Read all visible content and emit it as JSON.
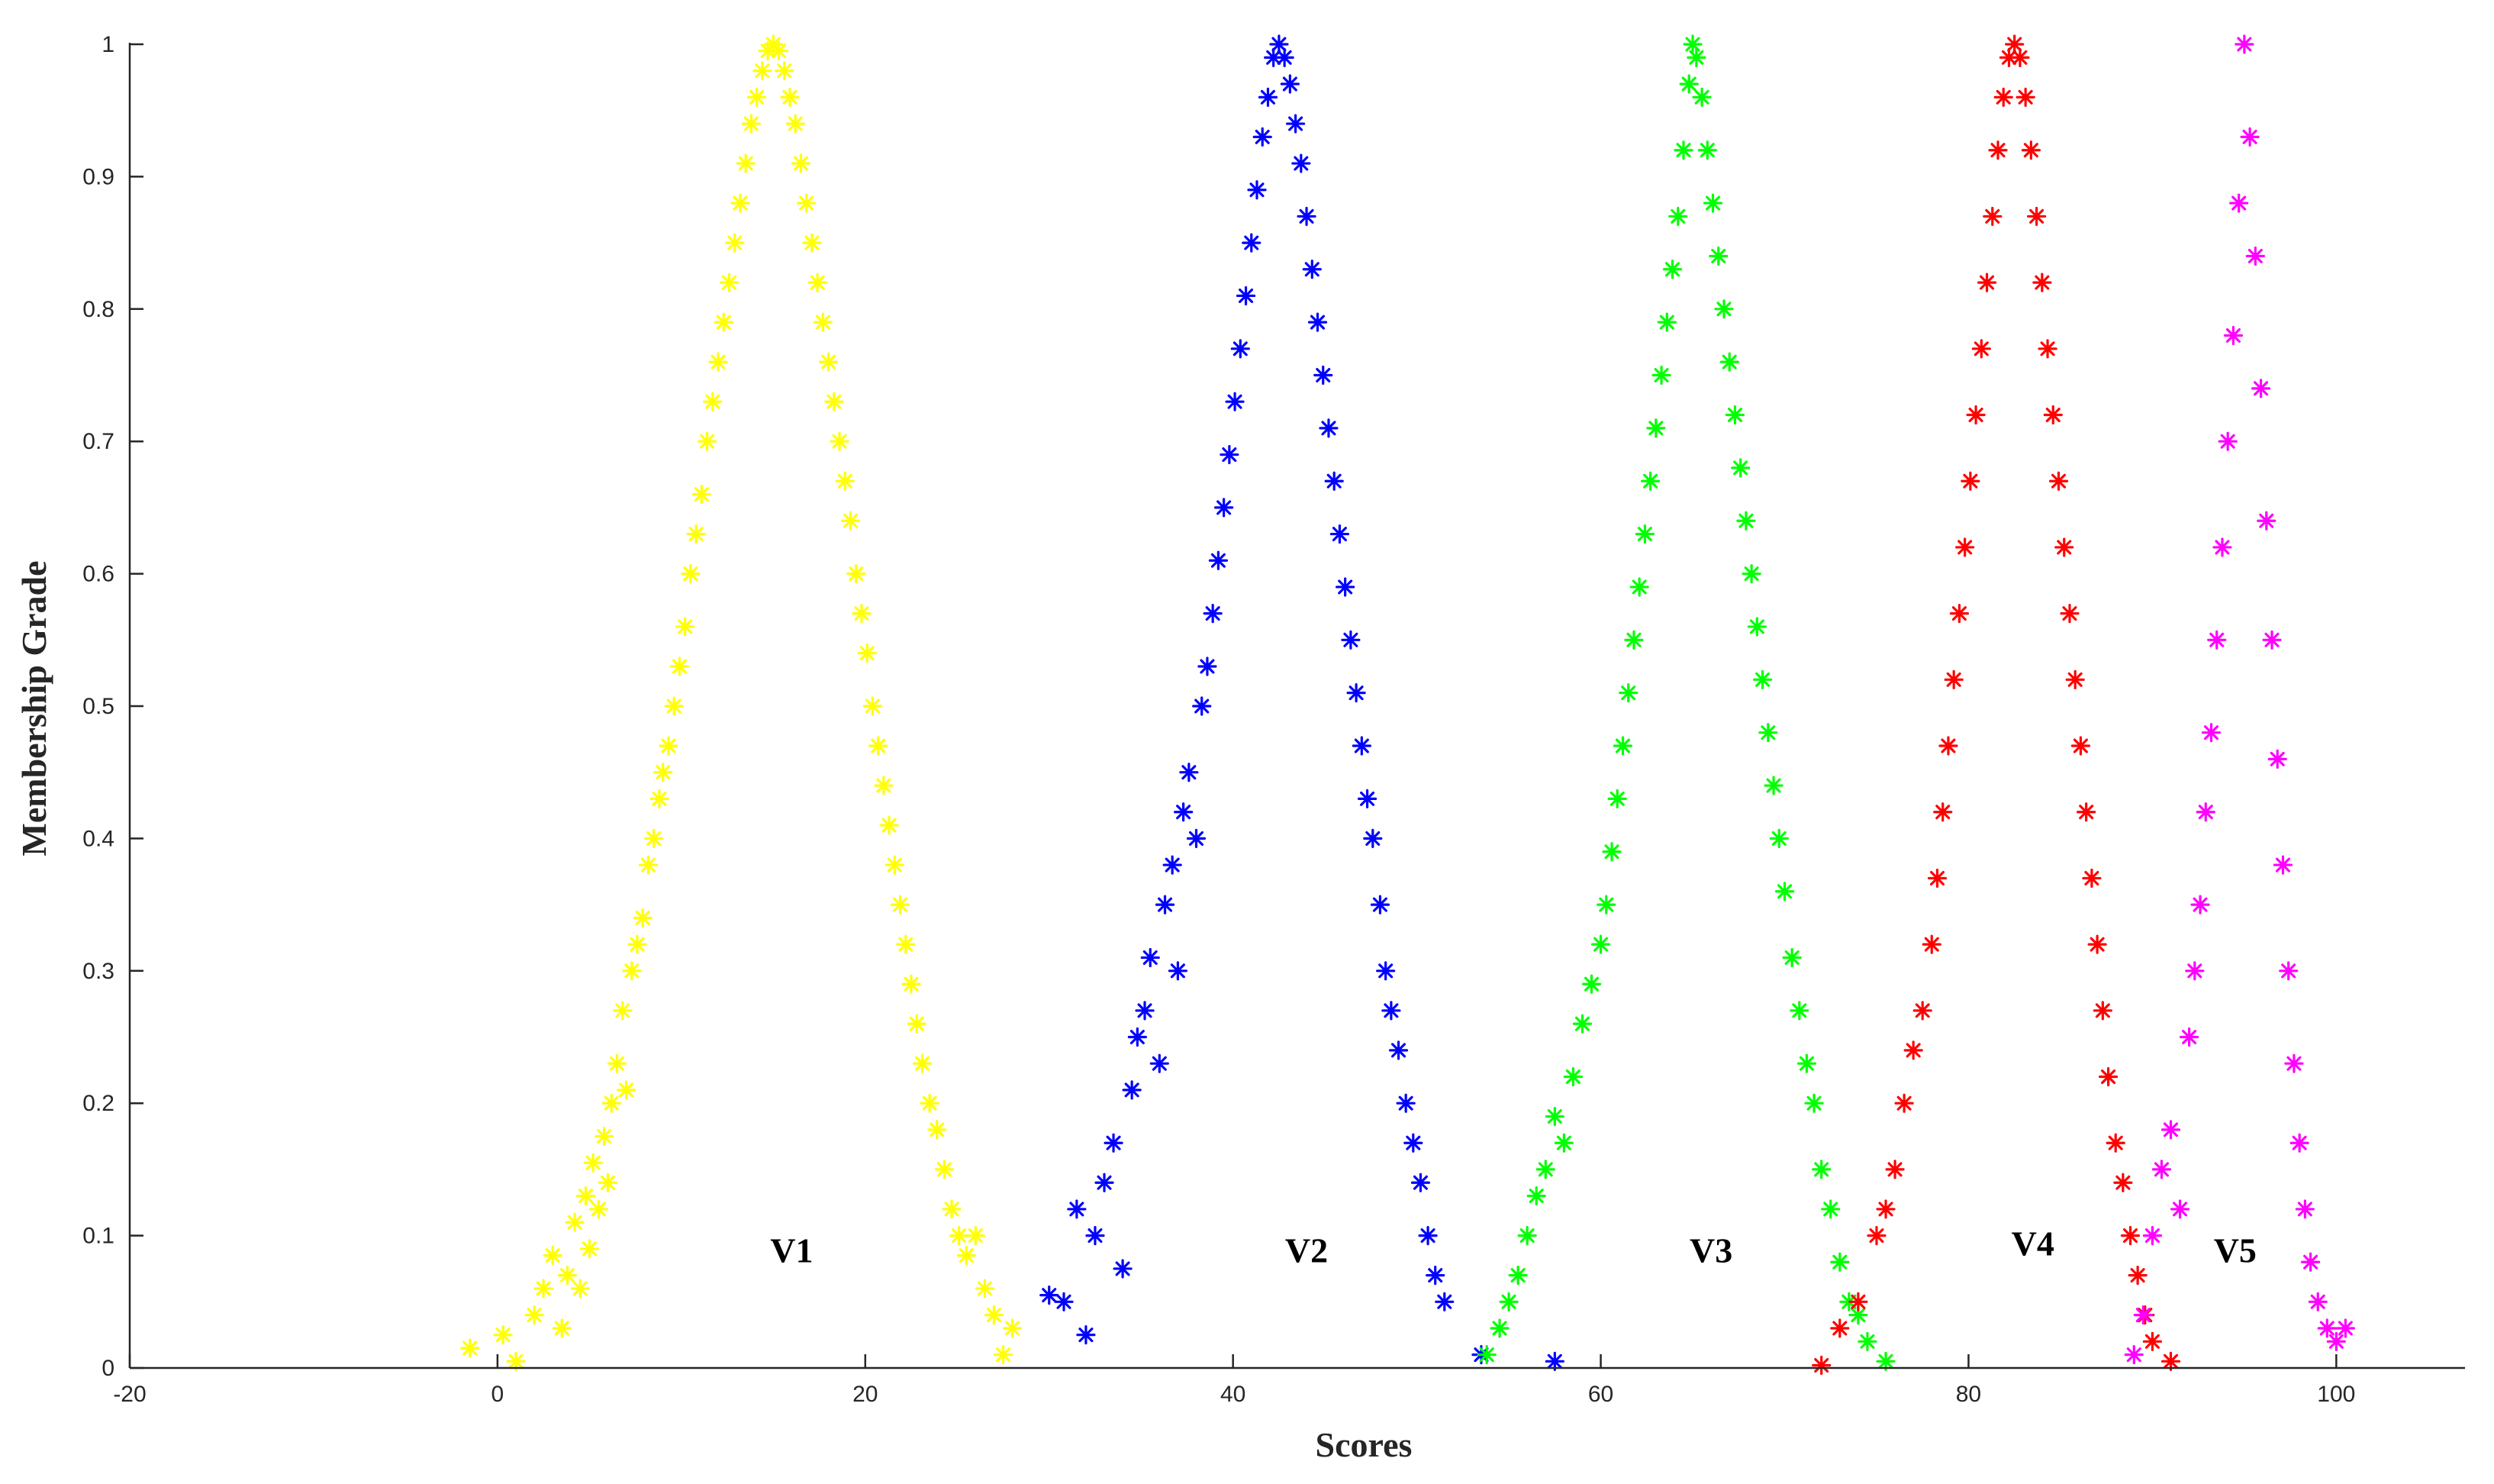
{
  "chart_data": {
    "type": "scatter",
    "title": "",
    "xlabel": "Scores",
    "ylabel": "Membership Grade",
    "xlim": [
      -20,
      107
    ],
    "ylim": [
      0,
      1
    ],
    "xticks": [
      -20,
      0,
      20,
      40,
      60,
      80,
      100
    ],
    "yticks": [
      0,
      0.1,
      0.2,
      0.3,
      0.4,
      0.5,
      0.6,
      0.7,
      0.8,
      0.9,
      1
    ],
    "marker": "asterisk",
    "grid": false,
    "legend": "none",
    "series": [
      {
        "color": "#ffff00",
        "peak": 15,
        "points": [
          [
            -1.5,
            0.015
          ],
          [
            0.3,
            0.025
          ],
          [
            1.0,
            0.005
          ],
          [
            2.0,
            0.04
          ],
          [
            2.5,
            0.06
          ],
          [
            3.0,
            0.085
          ],
          [
            3.5,
            0.03
          ],
          [
            3.8,
            0.07
          ],
          [
            4.2,
            0.11
          ],
          [
            4.5,
            0.06
          ],
          [
            4.8,
            0.13
          ],
          [
            5.0,
            0.09
          ],
          [
            5.2,
            0.155
          ],
          [
            5.5,
            0.12
          ],
          [
            5.8,
            0.175
          ],
          [
            6.0,
            0.14
          ],
          [
            6.2,
            0.2
          ],
          [
            6.5,
            0.23
          ],
          [
            6.8,
            0.27
          ],
          [
            7.0,
            0.21
          ],
          [
            7.3,
            0.3
          ],
          [
            7.6,
            0.32
          ],
          [
            7.9,
            0.34
          ],
          [
            8.2,
            0.38
          ],
          [
            8.5,
            0.4
          ],
          [
            8.8,
            0.43
          ],
          [
            9.0,
            0.45
          ],
          [
            9.3,
            0.47
          ],
          [
            9.6,
            0.5
          ],
          [
            9.9,
            0.53
          ],
          [
            10.2,
            0.56
          ],
          [
            10.5,
            0.6
          ],
          [
            10.8,
            0.63
          ],
          [
            11.1,
            0.66
          ],
          [
            11.4,
            0.7
          ],
          [
            11.7,
            0.73
          ],
          [
            12.0,
            0.76
          ],
          [
            12.3,
            0.79
          ],
          [
            12.6,
            0.82
          ],
          [
            12.9,
            0.85
          ],
          [
            13.2,
            0.88
          ],
          [
            13.5,
            0.91
          ],
          [
            13.8,
            0.94
          ],
          [
            14.1,
            0.96
          ],
          [
            14.4,
            0.98
          ],
          [
            14.7,
            0.995
          ],
          [
            15.0,
            1.0
          ],
          [
            15.3,
            0.995
          ],
          [
            15.6,
            0.98
          ],
          [
            15.9,
            0.96
          ],
          [
            16.2,
            0.94
          ],
          [
            16.5,
            0.91
          ],
          [
            16.8,
            0.88
          ],
          [
            17.1,
            0.85
          ],
          [
            17.4,
            0.82
          ],
          [
            17.7,
            0.79
          ],
          [
            18.0,
            0.76
          ],
          [
            18.3,
            0.73
          ],
          [
            18.6,
            0.7
          ],
          [
            18.9,
            0.67
          ],
          [
            19.2,
            0.64
          ],
          [
            19.5,
            0.6
          ],
          [
            19.8,
            0.57
          ],
          [
            20.1,
            0.54
          ],
          [
            20.4,
            0.5
          ],
          [
            20.7,
            0.47
          ],
          [
            21.0,
            0.44
          ],
          [
            21.3,
            0.41
          ],
          [
            21.6,
            0.38
          ],
          [
            21.9,
            0.35
          ],
          [
            22.2,
            0.32
          ],
          [
            22.5,
            0.29
          ],
          [
            22.8,
            0.26
          ],
          [
            23.1,
            0.23
          ],
          [
            23.5,
            0.2
          ],
          [
            23.9,
            0.18
          ],
          [
            24.3,
            0.15
          ],
          [
            24.7,
            0.12
          ],
          [
            25.1,
            0.1
          ],
          [
            25.5,
            0.085
          ],
          [
            26.0,
            0.1
          ],
          [
            26.5,
            0.06
          ],
          [
            27.0,
            0.04
          ],
          [
            27.5,
            0.01
          ],
          [
            28.0,
            0.03
          ]
        ]
      },
      {
        "color": "#0000ff",
        "peak": 42.5,
        "points": [
          [
            30.0,
            0.055
          ],
          [
            30.8,
            0.05
          ],
          [
            31.5,
            0.12
          ],
          [
            32.0,
            0.025
          ],
          [
            32.5,
            0.1
          ],
          [
            33.0,
            0.14
          ],
          [
            33.5,
            0.17
          ],
          [
            34.0,
            0.075
          ],
          [
            34.5,
            0.21
          ],
          [
            34.8,
            0.25
          ],
          [
            35.2,
            0.27
          ],
          [
            35.5,
            0.31
          ],
          [
            36.0,
            0.23
          ],
          [
            36.3,
            0.35
          ],
          [
            36.7,
            0.38
          ],
          [
            37.0,
            0.3
          ],
          [
            37.3,
            0.42
          ],
          [
            37.6,
            0.45
          ],
          [
            38.0,
            0.4
          ],
          [
            38.3,
            0.5
          ],
          [
            38.6,
            0.53
          ],
          [
            38.9,
            0.57
          ],
          [
            39.2,
            0.61
          ],
          [
            39.5,
            0.65
          ],
          [
            39.8,
            0.69
          ],
          [
            40.1,
            0.73
          ],
          [
            40.4,
            0.77
          ],
          [
            40.7,
            0.81
          ],
          [
            41.0,
            0.85
          ],
          [
            41.3,
            0.89
          ],
          [
            41.6,
            0.93
          ],
          [
            41.9,
            0.96
          ],
          [
            42.2,
            0.99
          ],
          [
            42.5,
            1.0
          ],
          [
            42.8,
            0.99
          ],
          [
            43.1,
            0.97
          ],
          [
            43.4,
            0.94
          ],
          [
            43.7,
            0.91
          ],
          [
            44.0,
            0.87
          ],
          [
            44.3,
            0.83
          ],
          [
            44.6,
            0.79
          ],
          [
            44.9,
            0.75
          ],
          [
            45.2,
            0.71
          ],
          [
            45.5,
            0.67
          ],
          [
            45.8,
            0.63
          ],
          [
            46.1,
            0.59
          ],
          [
            46.4,
            0.55
          ],
          [
            46.7,
            0.51
          ],
          [
            47.0,
            0.47
          ],
          [
            47.3,
            0.43
          ],
          [
            47.6,
            0.4
          ],
          [
            48.0,
            0.35
          ],
          [
            48.3,
            0.3
          ],
          [
            48.6,
            0.27
          ],
          [
            49.0,
            0.24
          ],
          [
            49.4,
            0.2
          ],
          [
            49.8,
            0.17
          ],
          [
            50.2,
            0.14
          ],
          [
            50.6,
            0.1
          ],
          [
            51.0,
            0.07
          ],
          [
            51.5,
            0.05
          ],
          [
            53.5,
            0.01
          ],
          [
            57.5,
            0.005
          ]
        ]
      },
      {
        "color": "#00ff00",
        "peak": 65,
        "points": [
          [
            53.8,
            0.01
          ],
          [
            54.5,
            0.03
          ],
          [
            55.0,
            0.05
          ],
          [
            55.5,
            0.07
          ],
          [
            56.0,
            0.1
          ],
          [
            56.5,
            0.13
          ],
          [
            57.0,
            0.15
          ],
          [
            57.5,
            0.19
          ],
          [
            58.0,
            0.17
          ],
          [
            58.5,
            0.22
          ],
          [
            59.0,
            0.26
          ],
          [
            59.5,
            0.29
          ],
          [
            60.0,
            0.32
          ],
          [
            60.3,
            0.35
          ],
          [
            60.6,
            0.39
          ],
          [
            60.9,
            0.43
          ],
          [
            61.2,
            0.47
          ],
          [
            61.5,
            0.51
          ],
          [
            61.8,
            0.55
          ],
          [
            62.1,
            0.59
          ],
          [
            62.4,
            0.63
          ],
          [
            62.7,
            0.67
          ],
          [
            63.0,
            0.71
          ],
          [
            63.3,
            0.75
          ],
          [
            63.6,
            0.79
          ],
          [
            63.9,
            0.83
          ],
          [
            64.2,
            0.87
          ],
          [
            64.5,
            0.92
          ],
          [
            64.8,
            0.97
          ],
          [
            65.0,
            1.0
          ],
          [
            65.2,
            0.99
          ],
          [
            65.5,
            0.96
          ],
          [
            65.8,
            0.92
          ],
          [
            66.1,
            0.88
          ],
          [
            66.4,
            0.84
          ],
          [
            66.7,
            0.8
          ],
          [
            67.0,
            0.76
          ],
          [
            67.3,
            0.72
          ],
          [
            67.6,
            0.68
          ],
          [
            67.9,
            0.64
          ],
          [
            68.2,
            0.6
          ],
          [
            68.5,
            0.56
          ],
          [
            68.8,
            0.52
          ],
          [
            69.1,
            0.48
          ],
          [
            69.4,
            0.44
          ],
          [
            69.7,
            0.4
          ],
          [
            70.0,
            0.36
          ],
          [
            70.4,
            0.31
          ],
          [
            70.8,
            0.27
          ],
          [
            71.2,
            0.23
          ],
          [
            71.6,
            0.2
          ],
          [
            72.0,
            0.15
          ],
          [
            72.5,
            0.12
          ],
          [
            73.0,
            0.08
          ],
          [
            73.5,
            0.05
          ],
          [
            74.0,
            0.04
          ],
          [
            74.5,
            0.02
          ],
          [
            75.5,
            0.005
          ]
        ]
      },
      {
        "color": "#ff0000",
        "peak": 82.5,
        "points": [
          [
            72.0,
            0.002
          ],
          [
            73.0,
            0.03
          ],
          [
            74.0,
            0.05
          ],
          [
            75.0,
            0.1
          ],
          [
            75.5,
            0.12
          ],
          [
            76.0,
            0.15
          ],
          [
            76.5,
            0.2
          ],
          [
            77.0,
            0.24
          ],
          [
            77.5,
            0.27
          ],
          [
            78.0,
            0.32
          ],
          [
            78.3,
            0.37
          ],
          [
            78.6,
            0.42
          ],
          [
            78.9,
            0.47
          ],
          [
            79.2,
            0.52
          ],
          [
            79.5,
            0.57
          ],
          [
            79.8,
            0.62
          ],
          [
            80.1,
            0.67
          ],
          [
            80.4,
            0.72
          ],
          [
            80.7,
            0.77
          ],
          [
            81.0,
            0.82
          ],
          [
            81.3,
            0.87
          ],
          [
            81.6,
            0.92
          ],
          [
            81.9,
            0.96
          ],
          [
            82.2,
            0.99
          ],
          [
            82.5,
            1.0
          ],
          [
            82.8,
            0.99
          ],
          [
            83.1,
            0.96
          ],
          [
            83.4,
            0.92
          ],
          [
            83.7,
            0.87
          ],
          [
            84.0,
            0.82
          ],
          [
            84.3,
            0.77
          ],
          [
            84.6,
            0.72
          ],
          [
            84.9,
            0.67
          ],
          [
            85.2,
            0.62
          ],
          [
            85.5,
            0.57
          ],
          [
            85.8,
            0.52
          ],
          [
            86.1,
            0.47
          ],
          [
            86.4,
            0.42
          ],
          [
            86.7,
            0.37
          ],
          [
            87.0,
            0.32
          ],
          [
            87.3,
            0.27
          ],
          [
            87.6,
            0.22
          ],
          [
            88.0,
            0.17
          ],
          [
            88.4,
            0.14
          ],
          [
            88.8,
            0.1
          ],
          [
            89.2,
            0.07
          ],
          [
            89.6,
            0.04
          ],
          [
            90.0,
            0.02
          ],
          [
            91.0,
            0.005
          ]
        ]
      },
      {
        "color": "#ff00ff",
        "peak": 95,
        "points": [
          [
            89.0,
            0.01
          ],
          [
            89.5,
            0.04
          ],
          [
            90.0,
            0.1
          ],
          [
            90.5,
            0.15
          ],
          [
            91.0,
            0.18
          ],
          [
            91.5,
            0.12
          ],
          [
            92.0,
            0.25
          ],
          [
            92.3,
            0.3
          ],
          [
            92.6,
            0.35
          ],
          [
            92.9,
            0.42
          ],
          [
            93.2,
            0.48
          ],
          [
            93.5,
            0.55
          ],
          [
            93.8,
            0.62
          ],
          [
            94.1,
            0.7
          ],
          [
            94.4,
            0.78
          ],
          [
            94.7,
            0.88
          ],
          [
            95.0,
            1.0
          ],
          [
            95.3,
            0.93
          ],
          [
            95.6,
            0.84
          ],
          [
            95.9,
            0.74
          ],
          [
            96.2,
            0.64
          ],
          [
            96.5,
            0.55
          ],
          [
            96.8,
            0.46
          ],
          [
            97.1,
            0.38
          ],
          [
            97.4,
            0.3
          ],
          [
            97.7,
            0.23
          ],
          [
            98.0,
            0.17
          ],
          [
            98.3,
            0.12
          ],
          [
            98.6,
            0.08
          ],
          [
            99.0,
            0.05
          ],
          [
            99.5,
            0.03
          ],
          [
            100.0,
            0.02
          ],
          [
            100.5,
            0.03
          ]
        ]
      }
    ],
    "annotations": [
      {
        "text": "V1",
        "x": 16,
        "y": 0.08
      },
      {
        "text": "V2",
        "x": 44,
        "y": 0.08
      },
      {
        "text": "V3",
        "x": 66,
        "y": 0.08
      },
      {
        "text": "V4",
        "x": 83.5,
        "y": 0.085
      },
      {
        "text": "V5",
        "x": 94.5,
        "y": 0.08
      }
    ]
  }
}
